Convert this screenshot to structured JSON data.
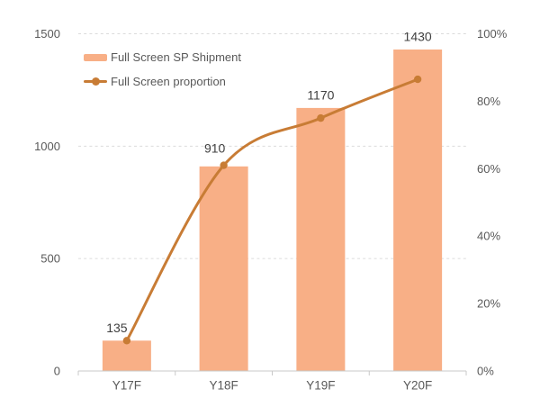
{
  "chart_data": {
    "type": "combo-bar-line",
    "categories": [
      "Y17F",
      "Y18F",
      "Y19F",
      "Y20F"
    ],
    "series": [
      {
        "name": "Full Screen SP Shipment",
        "type": "bar",
        "axis": "left",
        "values": [
          135,
          910,
          1170,
          1430
        ],
        "color": "#F8AF86"
      },
      {
        "name": "Full Screen proportion",
        "type": "line",
        "axis": "right",
        "unit": "%",
        "smooth": true,
        "values": [
          9,
          61,
          75,
          86.5
        ],
        "color": "#C87C35"
      }
    ],
    "left_axis": {
      "min": 0,
      "max": 1500,
      "tick_values": [
        0,
        500,
        1000,
        1500
      ],
      "tick_labels": [
        "0",
        "500",
        "1000",
        "1500"
      ]
    },
    "right_axis": {
      "min": 0,
      "max": 100,
      "tick_values": [
        0,
        20,
        40,
        60,
        80,
        100
      ],
      "tick_labels": [
        "0%",
        "20%",
        "40%",
        "60%",
        "80%",
        "100%"
      ]
    },
    "grid": {
      "horizontal": true,
      "style": "dashed",
      "at_left_ticks": true
    },
    "legend_position": "top-left-inside"
  },
  "colors": {
    "background": "#FFFFFF",
    "bar": "#F8AF86",
    "line": "#C87C35",
    "axis_text": "#595959",
    "data_label_text": "#404040",
    "gridline": "#DBDBDB",
    "axis_line": "#C8C8C8"
  }
}
